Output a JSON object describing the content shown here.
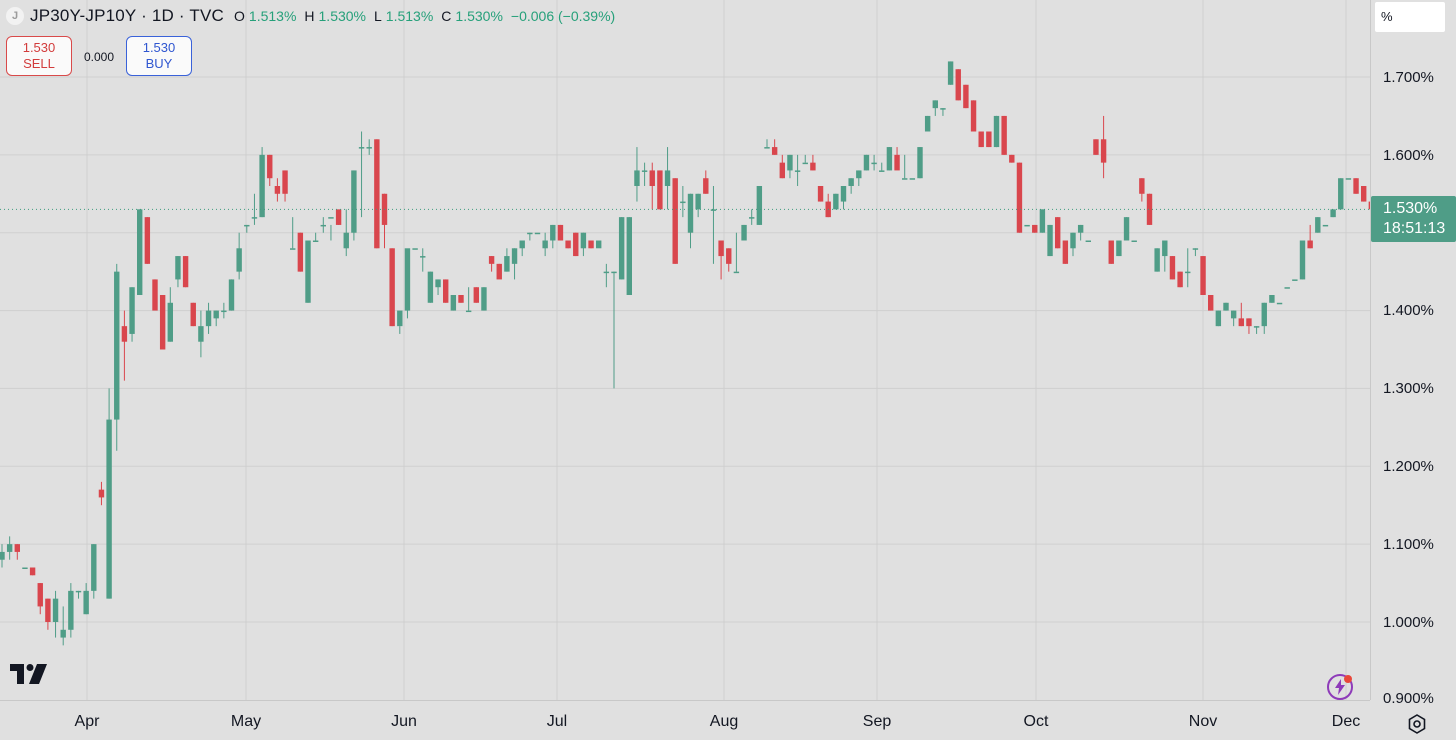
{
  "header": {
    "logo_letter": "J",
    "title": "JP30Y-JP10Y · 1D · TVC",
    "ohlc": [
      {
        "k": "O",
        "v": "1.513%"
      },
      {
        "k": "H",
        "v": "1.530%"
      },
      {
        "k": "L",
        "v": "1.513%"
      },
      {
        "k": "C",
        "v": "1.530%"
      }
    ],
    "change": "−0.006 (−0.39%)"
  },
  "trade": {
    "sell_price": "1.530",
    "sell_label": "SELL",
    "spread": "0.000",
    "buy_price": "1.530",
    "buy_label": "BUY"
  },
  "axis_unit": "%",
  "last_price": {
    "value": "1.530%",
    "countdown": "18:51:13"
  },
  "colors": {
    "up": "#4f9d87",
    "down": "#d9464d",
    "background": "#e0e0e0",
    "price_line": "#3e9b7e"
  },
  "icons": [
    "tradingview-logo-icon",
    "flash-icon",
    "settings-icon"
  ],
  "chart_data": {
    "type": "candlestick",
    "title": "JP30Y-JP10Y · 1D · TVC",
    "y_unit": "%",
    "ylim": [
      0.9,
      1.77
    ],
    "y_ticks": [
      "0.900%",
      "1.000%",
      "1.100%",
      "1.200%",
      "1.300%",
      "1.400%",
      "1.500%",
      "1.600%",
      "1.700%"
    ],
    "x_ticks": [
      "Apr",
      "May",
      "Jun",
      "Jul",
      "Aug",
      "Sep",
      "Oct",
      "Nov",
      "Dec"
    ],
    "grid": true,
    "series": [
      {
        "values": [
          [
            1.08,
            1.1,
            1.07,
            1.09
          ],
          [
            1.09,
            1.11,
            1.08,
            1.1
          ],
          [
            1.1,
            1.1,
            1.08,
            1.09
          ],
          [
            1.07,
            1.07,
            1.07,
            1.07
          ],
          [
            1.07,
            1.07,
            1.06,
            1.06
          ],
          [
            1.05,
            1.05,
            1.01,
            1.02
          ],
          [
            1.03,
            1.03,
            0.99,
            1.0
          ],
          [
            1.0,
            1.04,
            0.98,
            1.03
          ],
          [
            0.98,
            1.02,
            0.97,
            0.99
          ],
          [
            0.99,
            1.05,
            0.98,
            1.04
          ],
          [
            1.04,
            1.04,
            1.03,
            1.04
          ],
          [
            1.01,
            1.05,
            1.01,
            1.04
          ],
          [
            1.04,
            1.1,
            1.03,
            1.1
          ],
          [
            1.17,
            1.18,
            1.15,
            1.16
          ],
          [
            1.03,
            1.3,
            1.03,
            1.26
          ],
          [
            1.26,
            1.46,
            1.22,
            1.45
          ],
          [
            1.38,
            1.4,
            1.31,
            1.36
          ],
          [
            1.37,
            1.43,
            1.36,
            1.43
          ],
          [
            1.42,
            1.53,
            1.42,
            1.53
          ],
          [
            1.52,
            1.52,
            1.46,
            1.46
          ],
          [
            1.44,
            1.44,
            1.41,
            1.4
          ],
          [
            1.42,
            1.42,
            1.35,
            1.35
          ],
          [
            1.36,
            1.43,
            1.36,
            1.41
          ],
          [
            1.44,
            1.47,
            1.43,
            1.47
          ],
          [
            1.47,
            1.47,
            1.43,
            1.43
          ],
          [
            1.41,
            1.41,
            1.38,
            1.38
          ],
          [
            1.36,
            1.4,
            1.34,
            1.38
          ],
          [
            1.38,
            1.41,
            1.37,
            1.4
          ],
          [
            1.39,
            1.4,
            1.38,
            1.4
          ],
          [
            1.4,
            1.41,
            1.39,
            1.4
          ],
          [
            1.4,
            1.44,
            1.4,
            1.44
          ],
          [
            1.45,
            1.5,
            1.44,
            1.48
          ],
          [
            1.51,
            1.51,
            1.5,
            1.51
          ],
          [
            1.52,
            1.55,
            1.51,
            1.52
          ],
          [
            1.52,
            1.61,
            1.52,
            1.6
          ],
          [
            1.6,
            1.6,
            1.56,
            1.57
          ],
          [
            1.56,
            1.57,
            1.54,
            1.55
          ],
          [
            1.58,
            1.58,
            1.54,
            1.55
          ],
          [
            1.48,
            1.52,
            1.48,
            1.48
          ],
          [
            1.5,
            1.5,
            1.45,
            1.45
          ],
          [
            1.41,
            1.49,
            1.41,
            1.49
          ],
          [
            1.49,
            1.5,
            1.49,
            1.49
          ],
          [
            1.51,
            1.52,
            1.5,
            1.51
          ],
          [
            1.52,
            1.51,
            1.49,
            1.52
          ],
          [
            1.53,
            1.51,
            1.52,
            1.51
          ],
          [
            1.48,
            1.53,
            1.47,
            1.5
          ],
          [
            1.5,
            1.58,
            1.49,
            1.58
          ],
          [
            1.61,
            1.63,
            1.52,
            1.61
          ],
          [
            1.61,
            1.62,
            1.6,
            1.61
          ],
          [
            1.62,
            1.62,
            1.48,
            1.48
          ],
          [
            1.55,
            1.55,
            1.48,
            1.51
          ],
          [
            1.48,
            1.48,
            1.38,
            1.38
          ],
          [
            1.38,
            1.38,
            1.37,
            1.4
          ],
          [
            1.4,
            1.46,
            1.39,
            1.48
          ],
          [
            1.48,
            1.48,
            1.48,
            1.48
          ],
          [
            1.47,
            1.48,
            1.45,
            1.47
          ],
          [
            1.41,
            1.45,
            1.41,
            1.45
          ],
          [
            1.43,
            1.44,
            1.42,
            1.44
          ],
          [
            1.44,
            1.44,
            1.41,
            1.41
          ],
          [
            1.4,
            1.42,
            1.4,
            1.42
          ],
          [
            1.42,
            1.42,
            1.41,
            1.41
          ],
          [
            1.4,
            1.43,
            1.4,
            1.4
          ],
          [
            1.43,
            1.43,
            1.41,
            1.41
          ],
          [
            1.4,
            1.43,
            1.4,
            1.43
          ],
          [
            1.47,
            1.47,
            1.45,
            1.46
          ],
          [
            1.46,
            1.46,
            1.45,
            1.44
          ],
          [
            1.45,
            1.48,
            1.45,
            1.47
          ],
          [
            1.46,
            1.48,
            1.44,
            1.48
          ],
          [
            1.48,
            1.49,
            1.47,
            1.49
          ],
          [
            1.5,
            1.5,
            1.49,
            1.5
          ],
          [
            1.5,
            1.5,
            1.5,
            1.5
          ],
          [
            1.48,
            1.5,
            1.47,
            1.49
          ],
          [
            1.49,
            1.51,
            1.48,
            1.51
          ],
          [
            1.51,
            1.51,
            1.49,
            1.49
          ],
          [
            1.49,
            1.49,
            1.48,
            1.48
          ],
          [
            1.5,
            1.5,
            1.47,
            1.47
          ],
          [
            1.48,
            1.5,
            1.47,
            1.5
          ],
          [
            1.49,
            1.49,
            1.48,
            1.48
          ],
          [
            1.48,
            1.48,
            1.48,
            1.49
          ],
          [
            1.45,
            1.46,
            1.43,
            1.45
          ],
          [
            1.45,
            1.45,
            1.3,
            1.45
          ],
          [
            1.44,
            1.52,
            1.44,
            1.52
          ],
          [
            1.42,
            1.52,
            1.42,
            1.52
          ],
          [
            1.56,
            1.61,
            1.54,
            1.58
          ],
          [
            1.58,
            1.59,
            1.56,
            1.58
          ],
          [
            1.58,
            1.59,
            1.53,
            1.56
          ],
          [
            1.58,
            1.58,
            1.53,
            1.53
          ],
          [
            1.56,
            1.61,
            1.53,
            1.58
          ],
          [
            1.57,
            1.57,
            1.46,
            1.46
          ],
          [
            1.54,
            1.56,
            1.52,
            1.54
          ],
          [
            1.5,
            1.55,
            1.48,
            1.55
          ],
          [
            1.53,
            1.55,
            1.52,
            1.55
          ],
          [
            1.57,
            1.58,
            1.55,
            1.55
          ],
          [
            1.53,
            1.56,
            1.46,
            1.53
          ],
          [
            1.49,
            1.49,
            1.44,
            1.47
          ],
          [
            1.48,
            1.48,
            1.45,
            1.46
          ],
          [
            1.45,
            1.5,
            1.45,
            1.45
          ],
          [
            1.49,
            1.51,
            1.49,
            1.51
          ],
          [
            1.52,
            1.53,
            1.51,
            1.52
          ],
          [
            1.51,
            1.56,
            1.51,
            1.56
          ],
          [
            1.61,
            1.62,
            1.61,
            1.61
          ],
          [
            1.61,
            1.62,
            1.6,
            1.6
          ],
          [
            1.59,
            1.6,
            1.57,
            1.57
          ],
          [
            1.58,
            1.6,
            1.57,
            1.6
          ],
          [
            1.58,
            1.6,
            1.56,
            1.58
          ],
          [
            1.59,
            1.6,
            1.59,
            1.59
          ],
          [
            1.59,
            1.6,
            1.58,
            1.58
          ],
          [
            1.56,
            1.56,
            1.54,
            1.54
          ],
          [
            1.54,
            1.55,
            1.52,
            1.52
          ],
          [
            1.53,
            1.55,
            1.53,
            1.55
          ],
          [
            1.54,
            1.56,
            1.53,
            1.56
          ],
          [
            1.56,
            1.57,
            1.55,
            1.57
          ],
          [
            1.57,
            1.58,
            1.56,
            1.58
          ],
          [
            1.58,
            1.6,
            1.58,
            1.6
          ],
          [
            1.59,
            1.6,
            1.58,
            1.59
          ],
          [
            1.58,
            1.59,
            1.58,
            1.58
          ],
          [
            1.58,
            1.61,
            1.58,
            1.61
          ],
          [
            1.6,
            1.61,
            1.59,
            1.58
          ],
          [
            1.57,
            1.6,
            1.57,
            1.57
          ],
          [
            1.57,
            1.57,
            1.57,
            1.57
          ],
          [
            1.57,
            1.61,
            1.57,
            1.61
          ],
          [
            1.63,
            1.65,
            1.63,
            1.65
          ],
          [
            1.66,
            1.67,
            1.65,
            1.67
          ],
          [
            1.66,
            1.66,
            1.65,
            1.66
          ],
          [
            1.69,
            1.72,
            1.69,
            1.72
          ],
          [
            1.71,
            1.71,
            1.67,
            1.67
          ],
          [
            1.69,
            1.69,
            1.66,
            1.66
          ],
          [
            1.67,
            1.67,
            1.63,
            1.63
          ],
          [
            1.63,
            1.63,
            1.61,
            1.61
          ],
          [
            1.63,
            1.63,
            1.61,
            1.61
          ],
          [
            1.61,
            1.65,
            1.61,
            1.65
          ],
          [
            1.65,
            1.65,
            1.6,
            1.6
          ],
          [
            1.6,
            1.6,
            1.59,
            1.59
          ],
          [
            1.59,
            1.59,
            1.5,
            1.5
          ],
          [
            1.51,
            1.51,
            1.51,
            1.51
          ],
          [
            1.51,
            1.51,
            1.5,
            1.5
          ],
          [
            1.5,
            1.53,
            1.5,
            1.53
          ],
          [
            1.47,
            1.51,
            1.47,
            1.51
          ],
          [
            1.52,
            1.52,
            1.48,
            1.48
          ],
          [
            1.49,
            1.49,
            1.46,
            1.46
          ],
          [
            1.48,
            1.5,
            1.47,
            1.5
          ],
          [
            1.5,
            1.51,
            1.49,
            1.51
          ],
          [
            1.49,
            1.49,
            1.49,
            1.49
          ],
          [
            1.62,
            1.62,
            1.6,
            1.6
          ],
          [
            1.62,
            1.65,
            1.57,
            1.59
          ],
          [
            1.49,
            1.49,
            1.46,
            1.46
          ],
          [
            1.47,
            1.49,
            1.47,
            1.49
          ],
          [
            1.49,
            1.52,
            1.49,
            1.52
          ],
          [
            1.49,
            1.49,
            1.49,
            1.49
          ],
          [
            1.57,
            1.57,
            1.54,
            1.55
          ],
          [
            1.55,
            1.55,
            1.51,
            1.51
          ],
          [
            1.45,
            1.48,
            1.45,
            1.48
          ],
          [
            1.47,
            1.49,
            1.45,
            1.49
          ],
          [
            1.47,
            1.47,
            1.44,
            1.44
          ],
          [
            1.45,
            1.45,
            1.43,
            1.43
          ],
          [
            1.45,
            1.48,
            1.43,
            1.45
          ],
          [
            1.48,
            1.48,
            1.47,
            1.48
          ],
          [
            1.47,
            1.47,
            1.42,
            1.42
          ],
          [
            1.42,
            1.42,
            1.4,
            1.4
          ],
          [
            1.38,
            1.4,
            1.38,
            1.4
          ],
          [
            1.4,
            1.41,
            1.4,
            1.41
          ],
          [
            1.39,
            1.4,
            1.38,
            1.4
          ],
          [
            1.39,
            1.41,
            1.38,
            1.38
          ],
          [
            1.39,
            1.39,
            1.37,
            1.38
          ],
          [
            1.38,
            1.38,
            1.37,
            1.38
          ],
          [
            1.38,
            1.41,
            1.37,
            1.41
          ],
          [
            1.41,
            1.42,
            1.41,
            1.42
          ],
          [
            1.41,
            1.41,
            1.41,
            1.41
          ],
          [
            1.43,
            1.43,
            1.43,
            1.43
          ],
          [
            1.44,
            1.44,
            1.44,
            1.44
          ],
          [
            1.44,
            1.49,
            1.44,
            1.49
          ],
          [
            1.49,
            1.51,
            1.48,
            1.48
          ],
          [
            1.5,
            1.52,
            1.5,
            1.52
          ],
          [
            1.51,
            1.51,
            1.51,
            1.51
          ],
          [
            1.52,
            1.53,
            1.52,
            1.53
          ],
          [
            1.53,
            1.57,
            1.53,
            1.57
          ],
          [
            1.57,
            1.57,
            1.57,
            1.57
          ],
          [
            1.57,
            1.57,
            1.55,
            1.55
          ],
          [
            1.56,
            1.56,
            1.54,
            1.54
          ],
          [
            1.54,
            1.54,
            1.53,
            1.53
          ],
          [
            1.53,
            1.53,
            1.52,
            1.53
          ],
          [
            1.52,
            1.52,
            1.51,
            1.51
          ],
          [
            1.51,
            1.54,
            1.51,
            1.53
          ],
          [
            1.51,
            1.53,
            1.51,
            1.53
          ]
        ]
      }
    ],
    "last_value": 1.53
  }
}
